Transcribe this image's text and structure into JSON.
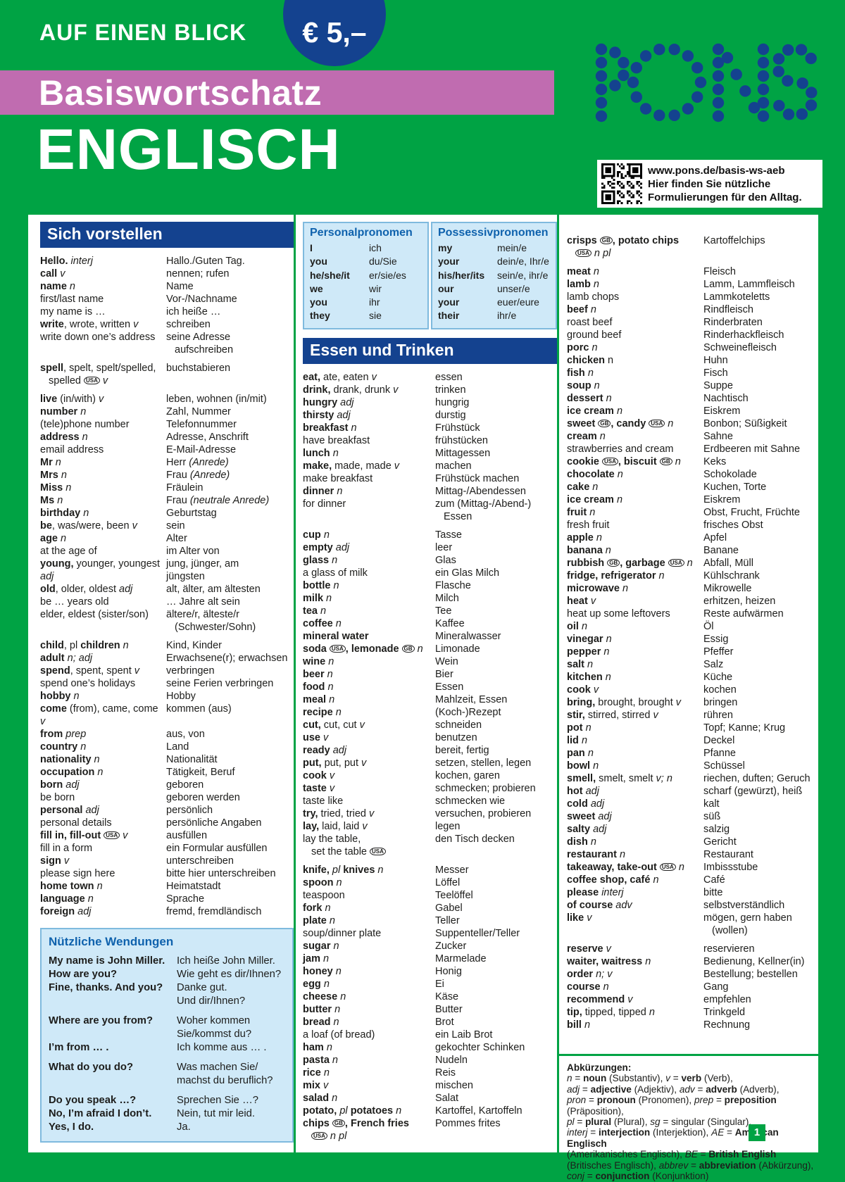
{
  "header": {
    "tagline": "AUF EINEN BLICK",
    "price": "€ 5,–",
    "series": "Basiswortschatz",
    "title": "ENGLISCH",
    "brand": "PONS",
    "qr": {
      "url": "www.pons.de/basis-ws-aeb",
      "lines": [
        "Hier finden Sie nützliche",
        "Formulierungen für den Alltag."
      ]
    }
  },
  "colors": {
    "green": "#00A344",
    "navy": "#14428F",
    "magenta": "#C06CB0",
    "light_blue": "#CFE9F8",
    "heading_blue": "#0F62AD"
  },
  "sections": {
    "intro": {
      "title": "Sich vorstellen",
      "entries": [
        [
          "<b>Hello.</b> <i>interj</i>",
          "Hallo./Guten Tag."
        ],
        [
          "<b>call</b> <i>v</i>",
          "nennen; rufen"
        ],
        [
          "<b>name</b> <i>n</i>",
          "Name"
        ],
        [
          "first/last name",
          "Vor-/Nachname"
        ],
        [
          "my name is …",
          "ich heiße …"
        ],
        [
          "<b>write</b>, wrote, written <i>v</i>",
          "schreiben"
        ],
        [
          "write down one’s address",
          "seine Adresse{bri}aufschreiben"
        ],
        [
          "<b>spell</b>, spelt, spelt/spelled,{bri}spelled {USA} <i>v</i>",
          "buchstabieren",
          1
        ],
        [
          "<b>live</b> (in/with) <i>v</i>",
          "leben, wohnen (in/mit)",
          1
        ],
        [
          "<b>number</b> <i>n</i>",
          "Zahl, Nummer"
        ],
        [
          "(tele)phone number",
          "Telefonnummer"
        ],
        [
          "<b>address</b> <i>n</i>",
          "Adresse, Anschrift"
        ],
        [
          "email address",
          "E-Mail-Adresse"
        ],
        [
          "<b>Mr</b> <i>n</i>",
          "Herr <i>(Anrede)</i>"
        ],
        [
          "<b>Mrs</b> <i>n</i>",
          "Frau <i>(Anrede)</i>"
        ],
        [
          "<b>Miss</b> <i>n</i>",
          "Fräulein"
        ],
        [
          "<b>Ms</b> <i>n</i>",
          "Frau <i>(neutrale Anrede)</i>"
        ],
        [
          "<b>birthday</b> <i>n</i>",
          "Geburtstag"
        ],
        [
          "<b>be</b>, was/were, been <i>v</i>",
          "sein"
        ],
        [
          "<b>age</b> <i>n</i>",
          "Alter"
        ],
        [
          "at the age of",
          "im Alter von"
        ],
        [
          "<b>young,</b> younger, youngest{br}<i>adj</i>",
          "jung, jünger, am{br}jüngsten"
        ],
        [
          "<b>old</b>, older, oldest <i>adj</i>",
          "alt, älter, am ältesten"
        ],
        [
          "be … years old",
          "… Jahre alt sein"
        ],
        [
          "elder, eldest (sister/son)",
          "ältere/r, älteste/r{bri}(Schwester/Sohn)"
        ],
        [
          "<b>child</b>, pl <b>children</b> <i>n</i>",
          "Kind, Kinder",
          1
        ],
        [
          "<b>adult</b> <i>n; adj</i>",
          "Erwachsene(r); erwachsen"
        ],
        [
          "<b>spend</b>, spent, spent <i>v</i>",
          "verbringen"
        ],
        [
          "spend one’s holidays",
          "seine Ferien verbringen"
        ],
        [
          "<b>hobby</b> <i>n</i>",
          "Hobby"
        ],
        [
          "<b>come</b> (from), came, come <i>v</i>",
          "kommen (aus)"
        ],
        [
          "<b>from</b> <i>prep</i>",
          "aus, von"
        ],
        [
          "<b>country</b> <i>n</i>",
          "Land"
        ],
        [
          "<b>nationality</b> <i>n</i>",
          "Nationalität"
        ],
        [
          "<b>occupation</b> <i>n</i>",
          "Tätigkeit, Beruf"
        ],
        [
          "<b>born</b> <i>adj</i>",
          "geboren"
        ],
        [
          "be born",
          "geboren werden"
        ],
        [
          "<b>personal</b> <i>adj</i>",
          "persönlich"
        ],
        [
          "personal details",
          "persönliche Angaben"
        ],
        [
          "<b>fill in, fill-out</b> {USA} <i>v</i>",
          "ausfüllen"
        ],
        [
          "fill in a form",
          "ein Formular ausfüllen"
        ],
        [
          "<b>sign</b> <i>v</i>",
          "unterschreiben"
        ],
        [
          "please sign here",
          "bitte hier unterschreiben"
        ],
        [
          "<b>home town</b> <i>n</i>",
          "Heimatstadt"
        ],
        [
          "<b>language</b> <i>n</i>",
          "Sprache"
        ],
        [
          "<b>foreign</b> <i>adj</i>",
          "fremd, fremdländisch"
        ]
      ]
    },
    "phrases": {
      "title": "Nützliche Wendungen",
      "entries": [
        [
          "My name is John Miller.",
          "Ich heiße John Miller."
        ],
        [
          "How are you?",
          "Wie geht es dir/Ihnen?"
        ],
        [
          "Fine, thanks. And you?",
          "Danke gut.{br}Und dir/Ihnen?"
        ],
        [
          "Where are you from?",
          "Woher kommen{br}Sie/kommst du?",
          1
        ],
        [
          "I’m from … .",
          "Ich komme aus … ."
        ],
        [
          "What do you do?",
          "Was machen Sie/{br}machst du beruflich?",
          1
        ],
        [
          "Do you speak …?",
          "Sprechen Sie …?",
          1
        ],
        [
          "No, I’m afraid I don’t.",
          "Nein, tut mir leid."
        ],
        [
          "Yes, I do.",
          "Ja."
        ]
      ]
    },
    "pronouns": {
      "personal": {
        "title": "Personalpronomen",
        "rows": [
          [
            "I",
            "ich"
          ],
          [
            "you",
            "du/Sie"
          ],
          [
            "he/she/it",
            "er/sie/es"
          ],
          [
            "we",
            "wir"
          ],
          [
            "you",
            "ihr"
          ],
          [
            "they",
            "sie"
          ]
        ]
      },
      "possessive": {
        "title": "Possessivpronomen",
        "rows": [
          [
            "my",
            "mein/e"
          ],
          [
            "your",
            "dein/e, Ihr/e"
          ],
          [
            "his/her/its",
            "sein/e, ihr/e"
          ],
          [
            "our",
            "unser/e"
          ],
          [
            "your",
            "euer/eure"
          ],
          [
            "their",
            "ihr/e"
          ]
        ]
      }
    },
    "food": {
      "title": "Essen und Trinken",
      "entries_left": [
        [
          "<b>eat,</b> ate, eaten <i>v</i>",
          "essen"
        ],
        [
          "<b>drink,</b> drank, drunk <i>v</i>",
          "trinken"
        ],
        [
          "<b>hungry</b> <i>adj</i>",
          "hungrig"
        ],
        [
          "<b>thirsty</b> <i>adj</i>",
          "durstig"
        ],
        [
          "<b>breakfast</b> <i>n</i>",
          "Frühstück"
        ],
        [
          "have breakfast",
          "frühstücken"
        ],
        [
          "<b>lunch</b> <i>n</i>",
          "Mittagessen"
        ],
        [
          "<b>make,</b> made, made <i>v</i>",
          "machen"
        ],
        [
          "make breakfast",
          "Frühstück machen"
        ],
        [
          "<b>dinner</b> <i>n</i>",
          "Mittag-/Abendessen"
        ],
        [
          "for dinner",
          "zum (Mittag-/Abend-){bri}Essen"
        ],
        [
          "<b>cup</b> <i>n</i>",
          "Tasse",
          1
        ],
        [
          "<b>empty</b> <i>adj</i>",
          "leer"
        ],
        [
          "<b>glass</b> <i>n</i>",
          "Glas"
        ],
        [
          "a glass of milk",
          "ein Glas Milch"
        ],
        [
          "<b>bottle</b> <i>n</i>",
          "Flasche"
        ],
        [
          "<b>milk</b> <i>n</i>",
          "Milch"
        ],
        [
          "<b>tea</b> <i>n</i>",
          "Tee"
        ],
        [
          "<b>coffee</b> <i>n</i>",
          "Kaffee"
        ],
        [
          "<b>mineral water</b>",
          "Mineralwasser"
        ],
        [
          "<b>soda</b> {USA}<b>, lemonade</b> {GB} <i>n</i>",
          "Limonade"
        ],
        [
          "<b>wine</b> <i>n</i>",
          "Wein"
        ],
        [
          "<b>beer</b> <i>n</i>",
          "Bier"
        ],
        [
          "<b>food</b> <i>n</i>",
          "Essen"
        ],
        [
          "<b>meal</b> <i>n</i>",
          "Mahlzeit, Essen"
        ],
        [
          "<b>recipe</b> <i>n</i>",
          "(Koch-)Rezept"
        ],
        [
          "<b>cut,</b> cut, cut <i>v</i>",
          "schneiden"
        ],
        [
          "<b>use</b> <i>v</i>",
          "benutzen"
        ],
        [
          "<b>ready</b> <i>adj</i>",
          "bereit, fertig"
        ],
        [
          "<b>put,</b> put, put <i>v</i>",
          "setzen, stellen, legen"
        ],
        [
          "<b>cook</b> <i>v</i>",
          "kochen, garen"
        ],
        [
          "<b>taste</b> <i>v</i>",
          "schmecken; probieren"
        ],
        [
          "taste like",
          "schmecken wie"
        ],
        [
          "<b>try,</b> tried, tried <i>v</i>",
          "versuchen, probieren"
        ],
        [
          "<b>lay,</b> laid, laid <i>v</i>",
          "legen"
        ],
        [
          "lay the table,{bri}set the table {USA}",
          "den Tisch decken"
        ],
        [
          "<b>knife,</b> <i>pl</i> <b>knives</b> <i>n</i>",
          "Messer",
          1
        ],
        [
          "<b>spoon</b> <i>n</i>",
          "Löffel"
        ],
        [
          "teaspoon",
          "Teelöffel"
        ],
        [
          "<b>fork</b> <i>n</i>",
          "Gabel"
        ],
        [
          "<b>plate</b> <i>n</i>",
          "Teller"
        ],
        [
          "soup/dinner plate",
          "Suppenteller/Teller"
        ],
        [
          "<b>sugar</b> <i>n</i>",
          "Zucker"
        ],
        [
          "<b>jam</b> <i>n</i>",
          "Marmelade"
        ],
        [
          "<b>honey</b> <i>n</i>",
          "Honig"
        ],
        [
          "<b>egg</b> <i>n</i>",
          "Ei"
        ],
        [
          "<b>cheese</b> <i>n</i>",
          "Käse"
        ],
        [
          "<b>butter</b> <i>n</i>",
          "Butter"
        ],
        [
          "<b>bread</b> <i>n</i>",
          "Brot"
        ],
        [
          "a loaf (of bread)",
          "ein Laib Brot"
        ],
        [
          "<b>ham</b> <i>n</i>",
          "gekochter Schinken"
        ],
        [
          "<b>pasta</b> <i>n</i>",
          "Nudeln"
        ],
        [
          "<b>rice</b> <i>n</i>",
          "Reis"
        ],
        [
          "<b>mix</b> <i>v</i>",
          "mischen"
        ],
        [
          "<b>salad</b> <i>n</i>",
          "Salat"
        ],
        [
          "<b>potato,</b> <i>pl</i> <b>potatoes</b> <i>n</i>",
          "Kartoffel, Kartoffeln"
        ],
        [
          "<b>chips</b> {GB}<b>, French fries</b>{bri}{USA} <i>n pl</i>",
          "Pommes frites"
        ]
      ],
      "entries_right": [
        [
          "<b>crisps</b> {GB}<b>, potato chips</b>{bri}{USA} <i>n pl</i>",
          "Kartoffelchips"
        ],
        [
          "<b>meat</b> <i>n</i>",
          "Fleisch",
          1
        ],
        [
          "<b>lamb</b> <i>n</i>",
          "Lamm, Lammfleisch"
        ],
        [
          "lamb chops",
          "Lammkoteletts"
        ],
        [
          "<b>beef</b> <i>n</i>",
          "Rindfleisch"
        ],
        [
          "roast beef",
          "Rinderbraten"
        ],
        [
          "ground beef",
          "Rinderhackfleisch"
        ],
        [
          "<b>porc</b> <i>n</i>",
          "Schweinefleisch"
        ],
        [
          "<b>chicken</b> n",
          "Huhn"
        ],
        [
          "<b>fish</b> <i>n</i>",
          "Fisch"
        ],
        [
          "<b>soup</b> <i>n</i>",
          "Suppe"
        ],
        [
          "<b>dessert</b> <i>n</i>",
          "Nachtisch"
        ],
        [
          "<b>ice cream</b> <i>n</i>",
          "Eiskrem"
        ],
        [
          "<b>sweet</b> {GB}<b>, candy</b> {USA} <i>n</i>",
          "Bonbon; Süßigkeit"
        ],
        [
          "<b>cream</b> <i>n</i>",
          "Sahne"
        ],
        [
          "strawberries and cream",
          "Erdbeeren mit Sahne"
        ],
        [
          "<b>cookie</b> {USA}<b>, biscuit</b> {GB} <i>n</i>",
          "Keks"
        ],
        [
          "<b>chocolate</b> <i>n</i>",
          "Schokolade"
        ],
        [
          "<b>cake</b> <i>n</i>",
          "Kuchen, Torte"
        ],
        [
          "<b>ice cream</b> <i>n</i>",
          "Eiskrem"
        ],
        [
          "<b>fruit</b> <i>n</i>",
          "Obst, Frucht, Früchte"
        ],
        [
          "fresh fruit",
          "frisches Obst"
        ],
        [
          "<b>apple</b> <i>n</i>",
          "Apfel"
        ],
        [
          "<b>banana</b> <i>n</i>",
          "Banane"
        ],
        [
          "<b>rubbish</b> {GB}<b>, garbage</b> {USA} <i>n</i>",
          "Abfall, Müll"
        ],
        [
          "<b>fridge, refrigerator</b> <i>n</i>",
          "Kühlschrank"
        ],
        [
          "<b>microwave</b> <i>n</i>",
          "Mikrowelle"
        ],
        [
          "<b>heat</b> <i>v</i>",
          "erhitzen, heizen"
        ],
        [
          "heat up some leftovers",
          "Reste aufwärmen"
        ],
        [
          "<b>oil</b> <i>n</i>",
          "Öl"
        ],
        [
          "<b>vinegar</b> <i>n</i>",
          "Essig"
        ],
        [
          "<b>pepper</b> <i>n</i>",
          "Pfeffer"
        ],
        [
          "<b>salt</b> <i>n</i>",
          "Salz"
        ],
        [
          "<b>kitchen</b> <i>n</i>",
          "Küche"
        ],
        [
          "<b>cook</b> <i>v</i>",
          "kochen"
        ],
        [
          "<b>bring,</b> brought, brought <i>v</i>",
          "bringen"
        ],
        [
          "<b>stir,</b> stirred, stirred <i>v</i>",
          "rühren"
        ],
        [
          "<b>pot</b> <i>n</i>",
          "Topf; Kanne; Krug"
        ],
        [
          "<b>lid</b> <i>n</i>",
          "Deckel"
        ],
        [
          "<b>pan</b> <i>n</i>",
          "Pfanne"
        ],
        [
          "<b>bowl</b> <i>n</i>",
          "Schüssel"
        ],
        [
          "<b>smell,</b> smelt, smelt <i>v; n</i>",
          "riechen, duften; Geruch"
        ],
        [
          "<b>hot</b> <i>adj</i>",
          "scharf (gewürzt), heiß"
        ],
        [
          "<b>cold</b> <i>adj</i>",
          "kalt"
        ],
        [
          "<b>sweet</b> <i>adj</i>",
          "süß"
        ],
        [
          "<b>salty</b> <i>adj</i>",
          "salzig"
        ],
        [
          "<b>dish</b> <i>n</i>",
          "Gericht"
        ],
        [
          "<b>restaurant</b> <i>n</i>",
          "Restaurant"
        ],
        [
          "<b>takeaway, take-out</b> {USA} <i>n</i>",
          "Imbissstube"
        ],
        [
          "<b>coffee shop, café</b> <i>n</i>",
          "Café"
        ],
        [
          "<b>please</b> <i>interj</i>",
          "bitte"
        ],
        [
          "<b>of course</b> <i>adv</i>",
          "selbstverständlich"
        ],
        [
          "<b>like</b> <i>v</i>",
          "mögen, gern haben{bri}(wollen)"
        ],
        [
          "<b>reserve</b> <i>v</i>",
          "reservieren",
          1
        ],
        [
          "<b>waiter, waitress</b> <i>n</i>",
          "Bedienung, Kellner(in)"
        ],
        [
          "<b>order</b> <i>n; v</i>",
          "Bestellung; bestellen"
        ],
        [
          "<b>course</b> <i>n</i>",
          "Gang"
        ],
        [
          "<b>recommend</b> <i>v</i>",
          "empfehlen"
        ],
        [
          "<b>tip,</b> tipped, tipped <i>n</i>",
          "Trinkgeld"
        ],
        [
          "<b>bill</b> <i>n</i>",
          "Rechnung"
        ]
      ]
    },
    "abbreviations": {
      "lines": [
        "<b>Abkürzungen:</b>",
        "<i>n</i> = <b>noun</b> (Substantiv), <i>v</i> = <b>verb</b> (Verb),",
        "<i>adj</i> = <b>adjective</b> (Adjektiv), <i>adv</i> = <b>adverb</b> (Adverb),",
        "<i>pron</i> = <b>pronoun</b> (Pronomen), <i>prep</i> = <b>preposition</b> (Präposition),",
        "<i>pl</i> = <b>plural</b> (Plural), <i>sg</i> = singular (Singular),",
        "<i>interj</i> = <b>interjection</b> (Interjektion), <i>AE</i> = <b>American Englisch</b>",
        "(Amerikanisches Englisch), <i>BE</i> = <b>British English</b>",
        "(Britisches Englisch), <i>abbrev</i> = <b>abbreviation</b> (Abkürzung),",
        "<i>conj</i> = <b>conjunction</b> (Konjunktion)"
      ]
    }
  },
  "footer": {
    "page": "1"
  }
}
